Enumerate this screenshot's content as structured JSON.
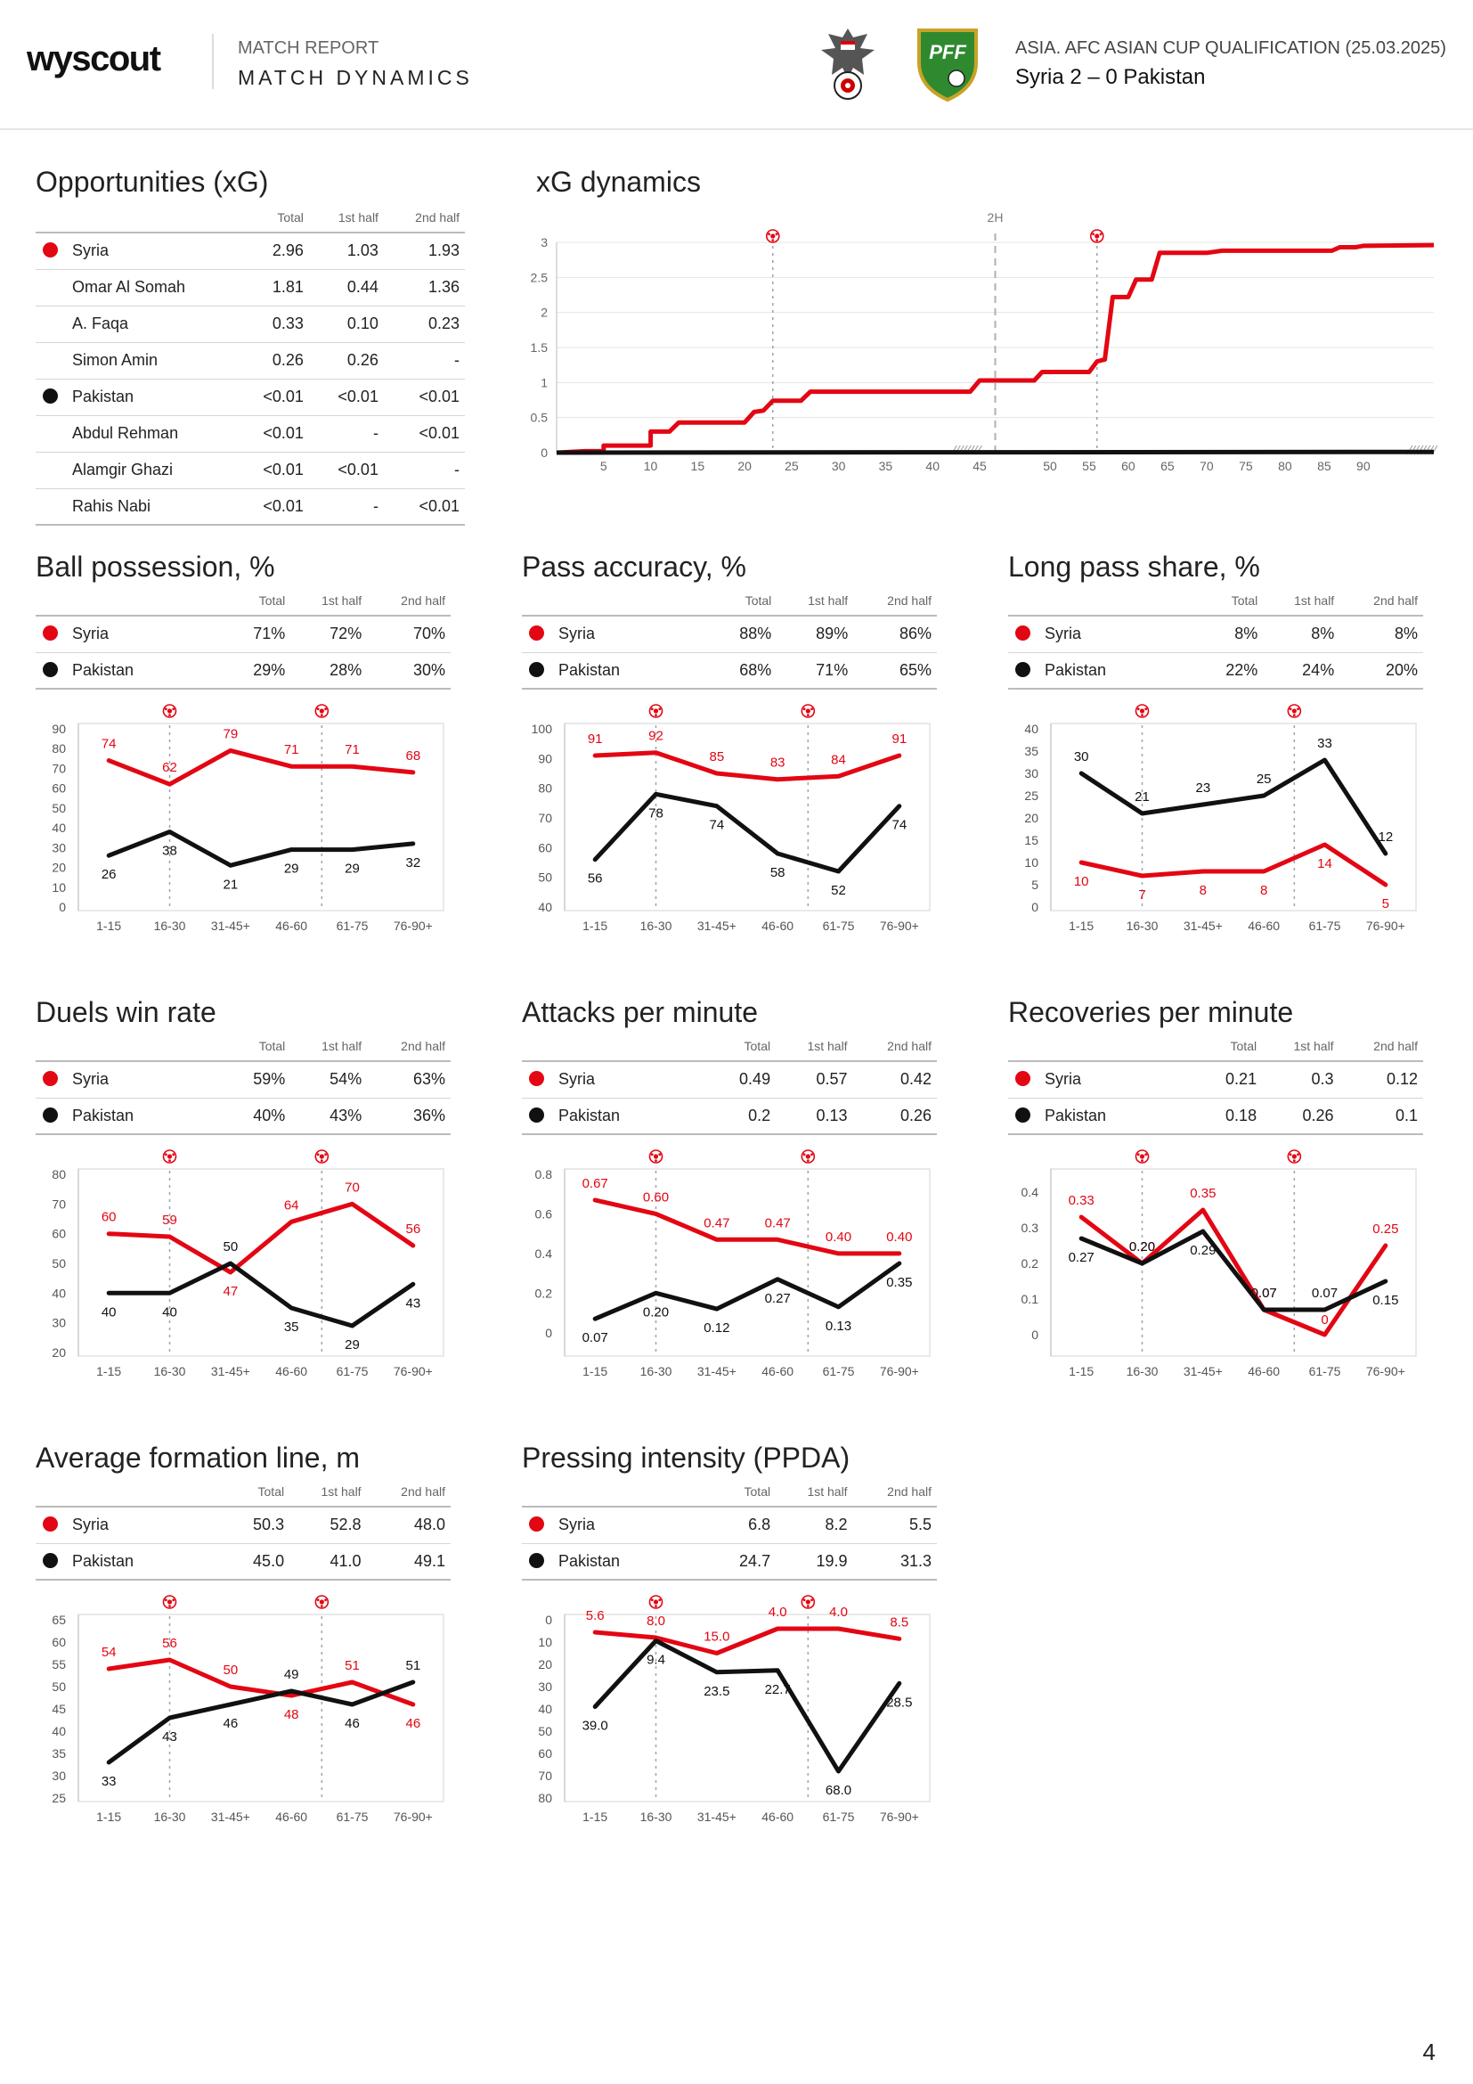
{
  "header": {
    "logo": "wyscout",
    "kicker": "MATCH REPORT",
    "title": "MATCH DYNAMICS",
    "competition": "ASIA. AFC ASIAN CUP QUALIFICATION (25.03.2025)",
    "match": "Syria 2 – 0 Pakistan",
    "pff_badge": "PFF"
  },
  "colors": {
    "syria": "#e30613",
    "pakistan": "#111111",
    "grid": "#e2e2e2",
    "goal_line": "#9aa4b0"
  },
  "goal_icon": "soccer-ball-icon",
  "page_number": "4",
  "columns": {
    "total": "Total",
    "first_half": "1st half",
    "second_half": "2nd half"
  },
  "opportunities": {
    "title": "Opportunities (xG)",
    "rows": [
      {
        "name": "Syria",
        "team": "syria",
        "total": "2.96",
        "h1": "1.03",
        "h2": "1.93"
      },
      {
        "name": "Omar Al Somah",
        "total": "1.81",
        "h1": "0.44",
        "h2": "1.36"
      },
      {
        "name": "A. Faqa",
        "total": "0.33",
        "h1": "0.10",
        "h2": "0.23"
      },
      {
        "name": "Simon Amin",
        "total": "0.26",
        "h1": "0.26",
        "h2": "-"
      },
      {
        "name": "Pakistan",
        "team": "pakistan",
        "total": "<0.01",
        "h1": "<0.01",
        "h2": "<0.01"
      },
      {
        "name": "Abdul Rehman",
        "total": "<0.01",
        "h1": "-",
        "h2": "<0.01"
      },
      {
        "name": "Alamgir Ghazi",
        "total": "<0.01",
        "h1": "<0.01",
        "h2": "-"
      },
      {
        "name": "Rahis Nabi",
        "total": "<0.01",
        "h1": "-",
        "h2": "<0.01"
      }
    ]
  },
  "xg_dynamics": {
    "title": "xG dynamics",
    "half_label": "2H",
    "y_ticks": [
      "0",
      "0.5",
      "1",
      "1.5",
      "2",
      "2.5",
      "3"
    ],
    "x_ticks_1h": [
      "5",
      "10",
      "15",
      "20",
      "25",
      "30",
      "35",
      "40",
      "45"
    ],
    "x_ticks_2h": [
      "50",
      "55",
      "60",
      "65",
      "70",
      "75",
      "80",
      "85",
      "90"
    ]
  },
  "chart_data": [
    {
      "id": "xg",
      "type": "line",
      "title": "xG dynamics",
      "x_unit": "minute",
      "ylim": [
        0,
        3
      ],
      "goals_minutes": [
        23,
        56
      ],
      "half_time_minute": 45,
      "series": [
        {
          "name": "Syria",
          "color": "#e30613",
          "points": [
            [
              0,
              0
            ],
            [
              3,
              0.02
            ],
            [
              5,
              0.02
            ],
            [
              5,
              0.1
            ],
            [
              10,
              0.1
            ],
            [
              10,
              0.3
            ],
            [
              12,
              0.3
            ],
            [
              13,
              0.43
            ],
            [
              20,
              0.43
            ],
            [
              21,
              0.58
            ],
            [
              22,
              0.6
            ],
            [
              23,
              0.74
            ],
            [
              26,
              0.74
            ],
            [
              27,
              0.87
            ],
            [
              44,
              0.87
            ],
            [
              45,
              1.03
            ],
            [
              48,
              1.03
            ],
            [
              49,
              1.15
            ],
            [
              55,
              1.15
            ],
            [
              56,
              1.3
            ],
            [
              57,
              1.33
            ],
            [
              58,
              2.22
            ],
            [
              60,
              2.22
            ],
            [
              61,
              2.47
            ],
            [
              63,
              2.47
            ],
            [
              64,
              2.85
            ],
            [
              70,
              2.85
            ],
            [
              72,
              2.88
            ],
            [
              86,
              2.88
            ],
            [
              87,
              2.93
            ],
            [
              89,
              2.93
            ],
            [
              90,
              2.95
            ],
            [
              99,
              2.96
            ]
          ]
        },
        {
          "name": "Pakistan",
          "color": "#111111",
          "points": [
            [
              0,
              0
            ],
            [
              99,
              0.01
            ]
          ]
        }
      ]
    },
    {
      "id": "possession",
      "type": "line",
      "title": "Ball possession, %",
      "categories": [
        "1-15",
        "16-30",
        "31-45+",
        "46-60",
        "61-75",
        "76-90+"
      ],
      "ylim": [
        0,
        90
      ],
      "y_ticks": [
        0,
        10,
        20,
        30,
        40,
        50,
        60,
        70,
        80,
        90
      ],
      "goals_after_index": [
        1,
        3.5
      ],
      "series": [
        {
          "name": "Syria",
          "color": "#e30613",
          "values": [
            74,
            62,
            79,
            71,
            71,
            68
          ]
        },
        {
          "name": "Pakistan",
          "color": "#111111",
          "values": [
            26,
            38,
            21,
            29,
            29,
            32
          ]
        }
      ]
    },
    {
      "id": "pass_accuracy",
      "type": "line",
      "title": "Pass accuracy, %",
      "categories": [
        "1-15",
        "16-30",
        "31-45+",
        "46-60",
        "61-75",
        "76-90+"
      ],
      "ylim": [
        40,
        100
      ],
      "y_ticks": [
        40,
        50,
        60,
        70,
        80,
        90,
        100
      ],
      "goals_after_index": [
        1,
        3.5
      ],
      "series": [
        {
          "name": "Syria",
          "color": "#e30613",
          "values": [
            91,
            92,
            85,
            83,
            84,
            91
          ]
        },
        {
          "name": "Pakistan",
          "color": "#111111",
          "values": [
            56,
            78,
            74,
            58,
            52,
            74
          ]
        }
      ]
    },
    {
      "id": "long_pass",
      "type": "line",
      "title": "Long pass share, %",
      "categories": [
        "1-15",
        "16-30",
        "31-45+",
        "46-60",
        "61-75",
        "76-90+"
      ],
      "ylim": [
        0,
        40
      ],
      "y_ticks": [
        0,
        5,
        10,
        15,
        20,
        25,
        30,
        35,
        40
      ],
      "goals_after_index": [
        1,
        3.5
      ],
      "series": [
        {
          "name": "Syria",
          "color": "#e30613",
          "values": [
            10,
            7,
            8,
            8,
            14,
            5
          ]
        },
        {
          "name": "Pakistan",
          "color": "#111111",
          "values": [
            30,
            21,
            23,
            25,
            33,
            12
          ]
        }
      ]
    },
    {
      "id": "duels",
      "type": "line",
      "title": "Duels win rate",
      "categories": [
        "1-15",
        "16-30",
        "31-45+",
        "46-60",
        "61-75",
        "76-90+"
      ],
      "ylim": [
        20,
        80
      ],
      "y_ticks": [
        20,
        30,
        40,
        50,
        60,
        70,
        80
      ],
      "goals_after_index": [
        1,
        3.5
      ],
      "series": [
        {
          "name": "Syria",
          "color": "#e30613",
          "values": [
            60,
            59,
            47,
            64,
            70,
            56
          ]
        },
        {
          "name": "Pakistan",
          "color": "#111111",
          "values": [
            40,
            40,
            50,
            35,
            29,
            43
          ]
        }
      ]
    },
    {
      "id": "attacks",
      "type": "line",
      "title": "Attacks per minute",
      "categories": [
        "1-15",
        "16-30",
        "31-45+",
        "46-60",
        "61-75",
        "76-90+"
      ],
      "ylim": [
        -0.1,
        0.8
      ],
      "y_ticks": [
        0,
        0.2,
        0.4,
        0.6,
        0.8
      ],
      "goals_after_index": [
        1,
        3.5
      ],
      "series": [
        {
          "name": "Syria",
          "color": "#e30613",
          "values": [
            0.67,
            0.6,
            0.47,
            0.47,
            0.4,
            0.4
          ]
        },
        {
          "name": "Pakistan",
          "color": "#111111",
          "values": [
            0.07,
            0.2,
            0.12,
            0.27,
            0.13,
            0.35
          ]
        }
      ]
    },
    {
      "id": "recoveries",
      "type": "line",
      "title": "Recoveries per minute",
      "categories": [
        "1-15",
        "16-30",
        "31-45+",
        "46-60",
        "61-75",
        "76-90+"
      ],
      "ylim": [
        -0.05,
        0.45
      ],
      "y_ticks": [
        0,
        0.1,
        0.2,
        0.3,
        0.4
      ],
      "goals_after_index": [
        1,
        3.5
      ],
      "series": [
        {
          "name": "Syria",
          "color": "#e30613",
          "values": [
            0.33,
            0.2,
            0.35,
            0.07,
            0,
            0.25
          ]
        },
        {
          "name": "Pakistan",
          "color": "#111111",
          "values": [
            0.27,
            0.2,
            0.29,
            0.07,
            0.07,
            0.15
          ]
        }
      ]
    },
    {
      "id": "formation",
      "type": "line",
      "title": "Average formation line, m",
      "categories": [
        "1-15",
        "16-30",
        "31-45+",
        "46-60",
        "61-75",
        "76-90+"
      ],
      "ylim": [
        25,
        65
      ],
      "y_ticks": [
        25,
        30,
        35,
        40,
        45,
        50,
        55,
        60,
        65
      ],
      "goals_after_index": [
        1,
        3.5
      ],
      "series": [
        {
          "name": "Syria",
          "color": "#e30613",
          "values": [
            54,
            56,
            50,
            48,
            51,
            46
          ]
        },
        {
          "name": "Pakistan",
          "color": "#111111",
          "values": [
            33,
            43,
            46,
            49,
            46,
            51
          ]
        }
      ]
    },
    {
      "id": "ppda",
      "type": "line",
      "title": "Pressing intensity (PPDA)",
      "categories": [
        "1-15",
        "16-30",
        "31-45+",
        "46-60",
        "61-75",
        "76-90+"
      ],
      "ylim": [
        0,
        80
      ],
      "inverted": true,
      "y_ticks": [
        0,
        10,
        20,
        30,
        40,
        50,
        60,
        70,
        80
      ],
      "goals_after_index": [
        1,
        3.5
      ],
      "series": [
        {
          "name": "Syria",
          "color": "#e30613",
          "values": [
            5.6,
            8.0,
            15.0,
            4.0,
            4.0,
            8.5
          ]
        },
        {
          "name": "Pakistan",
          "color": "#111111",
          "values": [
            39.0,
            9.4,
            23.5,
            22.7,
            68.0,
            28.5
          ]
        }
      ]
    }
  ],
  "sections": [
    {
      "id": "possession",
      "title": "Ball possession, %",
      "rows": [
        {
          "name": "Syria",
          "team": "syria",
          "total": "71%",
          "h1": "72%",
          "h2": "70%"
        },
        {
          "name": "Pakistan",
          "team": "pakistan",
          "total": "29%",
          "h1": "28%",
          "h2": "30%"
        }
      ],
      "syria_labels": [
        "74",
        "62",
        "79",
        "71",
        "71",
        "68"
      ],
      "pakistan_labels": [
        "26",
        "38",
        "21",
        "29",
        "29",
        "32"
      ]
    },
    {
      "id": "pass_accuracy",
      "title": "Pass accuracy, %",
      "rows": [
        {
          "name": "Syria",
          "team": "syria",
          "total": "88%",
          "h1": "89%",
          "h2": "86%"
        },
        {
          "name": "Pakistan",
          "team": "pakistan",
          "total": "68%",
          "h1": "71%",
          "h2": "65%"
        }
      ],
      "syria_labels": [
        "91",
        "92",
        "85",
        "83",
        "84",
        "91"
      ],
      "pakistan_labels": [
        "56",
        "78",
        "74",
        "58",
        "52",
        "74"
      ]
    },
    {
      "id": "long_pass",
      "title": "Long pass share, %",
      "rows": [
        {
          "name": "Syria",
          "team": "syria",
          "total": "8%",
          "h1": "8%",
          "h2": "8%"
        },
        {
          "name": "Pakistan",
          "team": "pakistan",
          "total": "22%",
          "h1": "24%",
          "h2": "20%"
        }
      ],
      "syria_labels": [
        "10",
        "7",
        "8",
        "8",
        "14",
        "5"
      ],
      "pakistan_labels": [
        "30",
        "21",
        "23",
        "25",
        "33",
        "12"
      ]
    },
    {
      "id": "duels",
      "title": "Duels win rate",
      "rows": [
        {
          "name": "Syria",
          "team": "syria",
          "total": "59%",
          "h1": "54%",
          "h2": "63%"
        },
        {
          "name": "Pakistan",
          "team": "pakistan",
          "total": "40%",
          "h1": "43%",
          "h2": "36%"
        }
      ],
      "syria_labels": [
        "60",
        "59",
        "47",
        "64",
        "70",
        "56"
      ],
      "pakistan_labels": [
        "40",
        "40",
        "50",
        "35",
        "29",
        "43"
      ]
    },
    {
      "id": "attacks",
      "title": "Attacks per minute",
      "rows": [
        {
          "name": "Syria",
          "team": "syria",
          "total": "0.49",
          "h1": "0.57",
          "h2": "0.42"
        },
        {
          "name": "Pakistan",
          "team": "pakistan",
          "total": "0.2",
          "h1": "0.13",
          "h2": "0.26"
        }
      ],
      "syria_labels": [
        "0.67",
        "0.60",
        "0.47",
        "0.47",
        "0.40",
        "0.40"
      ],
      "pakistan_labels": [
        "0.07",
        "0.20",
        "0.12",
        "0.27",
        "0.13",
        "0.35"
      ]
    },
    {
      "id": "recoveries",
      "title": "Recoveries per minute",
      "rows": [
        {
          "name": "Syria",
          "team": "syria",
          "total": "0.21",
          "h1": "0.3",
          "h2": "0.12"
        },
        {
          "name": "Pakistan",
          "team": "pakistan",
          "total": "0.18",
          "h1": "0.26",
          "h2": "0.1"
        }
      ],
      "syria_labels": [
        "0.33",
        "0.20",
        "0.35",
        "0.07",
        "0",
        "0.25"
      ],
      "pakistan_labels": [
        "0.27",
        "0.20",
        "0.29",
        "0.07",
        "0.07",
        "0.15"
      ]
    },
    {
      "id": "formation",
      "title": "Average formation line, m",
      "rows": [
        {
          "name": "Syria",
          "team": "syria",
          "total": "50.3",
          "h1": "52.8",
          "h2": "48.0"
        },
        {
          "name": "Pakistan",
          "team": "pakistan",
          "total": "45.0",
          "h1": "41.0",
          "h2": "49.1"
        }
      ],
      "syria_labels": [
        "54",
        "56",
        "50",
        "48",
        "51",
        "46"
      ],
      "pakistan_labels": [
        "33",
        "43",
        "46",
        "49",
        "46",
        "51"
      ]
    },
    {
      "id": "ppda",
      "title": "Pressing intensity (PPDA)",
      "rows": [
        {
          "name": "Syria",
          "team": "syria",
          "total": "6.8",
          "h1": "8.2",
          "h2": "5.5"
        },
        {
          "name": "Pakistan",
          "team": "pakistan",
          "total": "24.7",
          "h1": "19.9",
          "h2": "31.3"
        }
      ],
      "syria_labels": [
        "5.6",
        "8.0",
        "15.0",
        "4.0",
        "4.0",
        "8.5"
      ],
      "pakistan_labels": [
        "39.0",
        "9.4",
        "23.5",
        "22.7",
        "68.0",
        "28.5"
      ]
    }
  ]
}
